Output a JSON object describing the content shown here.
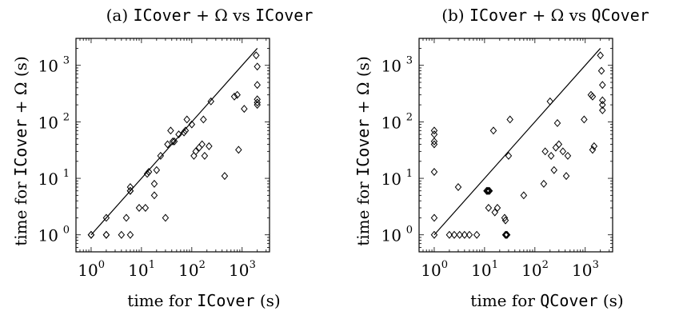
{
  "chart_data": [
    {
      "type": "scatter",
      "title": {
        "prefix": "(a) ",
        "code1": "ICover",
        "math": " + Ω",
        "mid": " vs ",
        "code2": "ICover"
      },
      "xlabel": {
        "pre": "time for ",
        "code": "ICover",
        "post": " (s)"
      },
      "ylabel": {
        "pre": "time for ",
        "code": "ICover",
        "math": " + Ω",
        "post": " (s)"
      },
      "xscale": "log",
      "yscale": "log",
      "xlim": [
        0.5,
        3500
      ],
      "ylim": [
        0.5,
        3000
      ],
      "xticks": [
        1,
        10,
        100,
        1000
      ],
      "yticks": [
        1,
        10,
        100,
        1000
      ],
      "tick_labels": [
        "10",
        "10",
        "10",
        "10"
      ],
      "tick_exponents": [
        "0",
        "1",
        "2",
        "3"
      ],
      "marker": "diamond",
      "reference_line": {
        "x": [
          1,
          2000
        ],
        "y": [
          1,
          2000
        ]
      },
      "points": [
        [
          1,
          1
        ],
        [
          1,
          1
        ],
        [
          2,
          1
        ],
        [
          2,
          2
        ],
        [
          2,
          1
        ],
        [
          4,
          1
        ],
        [
          5,
          2
        ],
        [
          6,
          1
        ],
        [
          6,
          6
        ],
        [
          6,
          7
        ],
        [
          6,
          6
        ],
        [
          9,
          3
        ],
        [
          12,
          3
        ],
        [
          13,
          12
        ],
        [
          14,
          13
        ],
        [
          18,
          5
        ],
        [
          18,
          8
        ],
        [
          20,
          14
        ],
        [
          24,
          25
        ],
        [
          30,
          2
        ],
        [
          33,
          40
        ],
        [
          38,
          70
        ],
        [
          42,
          45
        ],
        [
          45,
          45
        ],
        [
          55,
          60
        ],
        [
          70,
          65
        ],
        [
          75,
          70
        ],
        [
          80,
          110
        ],
        [
          100,
          90
        ],
        [
          110,
          25
        ],
        [
          120,
          30
        ],
        [
          140,
          35
        ],
        [
          160,
          40
        ],
        [
          170,
          110
        ],
        [
          180,
          25
        ],
        [
          220,
          37
        ],
        [
          240,
          230
        ],
        [
          450,
          11
        ],
        [
          700,
          280
        ],
        [
          800,
          300
        ],
        [
          850,
          32
        ],
        [
          1100,
          170
        ],
        [
          1900,
          1500
        ],
        [
          2000,
          950
        ],
        [
          2000,
          450
        ],
        [
          2000,
          250
        ],
        [
          2000,
          220
        ],
        [
          2000,
          200
        ]
      ]
    },
    {
      "type": "scatter",
      "title": {
        "prefix": "(b) ",
        "code1": "ICover",
        "math": " + Ω",
        "mid": " vs ",
        "code2": "QCover"
      },
      "xlabel": {
        "pre": "time for ",
        "code": "QCover",
        "post": " (s)"
      },
      "ylabel": {
        "pre": "time for ",
        "code": "ICover",
        "math": " + Ω",
        "post": " (s)"
      },
      "xscale": "log",
      "yscale": "log",
      "xlim": [
        0.5,
        3500
      ],
      "ylim": [
        0.5,
        3000
      ],
      "xticks": [
        1,
        10,
        100,
        1000
      ],
      "yticks": [
        1,
        10,
        100,
        1000
      ],
      "tick_labels": [
        "10",
        "10",
        "10",
        "10"
      ],
      "tick_exponents": [
        "0",
        "1",
        "2",
        "3"
      ],
      "marker": "diamond",
      "reference_line": {
        "x": [
          1,
          2000
        ],
        "y": [
          1,
          2000
        ]
      },
      "points": [
        [
          1,
          70
        ],
        [
          1,
          60
        ],
        [
          1,
          45
        ],
        [
          1,
          40
        ],
        [
          1,
          13
        ],
        [
          1,
          2
        ],
        [
          1,
          1
        ],
        [
          2,
          1
        ],
        [
          2.5,
          1
        ],
        [
          3,
          7
        ],
        [
          3.2,
          1
        ],
        [
          4,
          1
        ],
        [
          5,
          1
        ],
        [
          7,
          1
        ],
        [
          11,
          6
        ],
        [
          11.5,
          6
        ],
        [
          12,
          6
        ],
        [
          12.5,
          6
        ],
        [
          12,
          3
        ],
        [
          15,
          70
        ],
        [
          16,
          2.5
        ],
        [
          18,
          3
        ],
        [
          25,
          2
        ],
        [
          26,
          1.8
        ],
        [
          26,
          1
        ],
        [
          27,
          1
        ],
        [
          28,
          1
        ],
        [
          30,
          25
        ],
        [
          32,
          110
        ],
        [
          60,
          5
        ],
        [
          150,
          8
        ],
        [
          160,
          30
        ],
        [
          200,
          230
        ],
        [
          210,
          25
        ],
        [
          240,
          14
        ],
        [
          260,
          35
        ],
        [
          280,
          95
        ],
        [
          300,
          40
        ],
        [
          360,
          30
        ],
        [
          420,
          11
        ],
        [
          450,
          25
        ],
        [
          950,
          110
        ],
        [
          1300,
          300
        ],
        [
          1400,
          280
        ],
        [
          1400,
          32
        ],
        [
          1500,
          37
        ],
        [
          2000,
          1500
        ],
        [
          2100,
          800
        ],
        [
          2200,
          450
        ],
        [
          2200,
          240
        ],
        [
          2200,
          200
        ],
        [
          2200,
          160
        ]
      ]
    }
  ]
}
